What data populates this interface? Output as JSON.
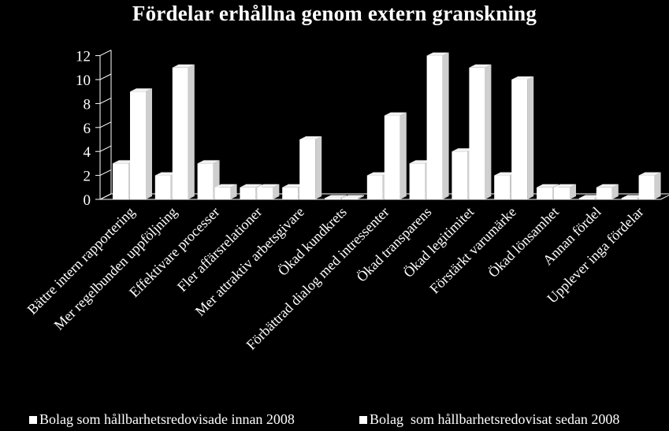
{
  "chart_data": {
    "type": "bar",
    "title": "Fördelar erhållna genom extern granskning",
    "categories": [
      "Bättre intern rapportering",
      "Mer regelbunden uppföljning",
      "Effektivare processer",
      "Fler affärsrelationer",
      "Mer attraktiv arbetsgivare",
      "Ökad kundkrets",
      "Förbättrad dialog med intressenter",
      "Ökad transparens",
      "Ökad legitimitet",
      "Förstärkt varumärke",
      "Ökad lönsamhet",
      "Annan fördel",
      "Upplever inga fördelar"
    ],
    "series": [
      {
        "name": "Bolag som hållbarhetsredovisade innan 2008",
        "values": [
          3,
          2,
          3,
          1,
          1,
          0,
          2,
          3,
          4,
          2,
          1,
          0,
          0
        ]
      },
      {
        "name": "Bolag  som hållbarhetsredovisat sedan 2008",
        "values": [
          9,
          11,
          1,
          1,
          5,
          0,
          7,
          12,
          11,
          10,
          1,
          1,
          2
        ]
      }
    ],
    "yticks": [
      "0",
      "2",
      "4",
      "6",
      "8",
      "10",
      "12"
    ],
    "ylim": [
      0,
      12
    ],
    "grid": false,
    "legend_position": "bottom",
    "colors": {
      "background": "#000000",
      "bars": "#ffffff",
      "bar_side": "#cfcfcf",
      "bar_top": "#f2f2f2",
      "axis": "#ffffff"
    }
  }
}
